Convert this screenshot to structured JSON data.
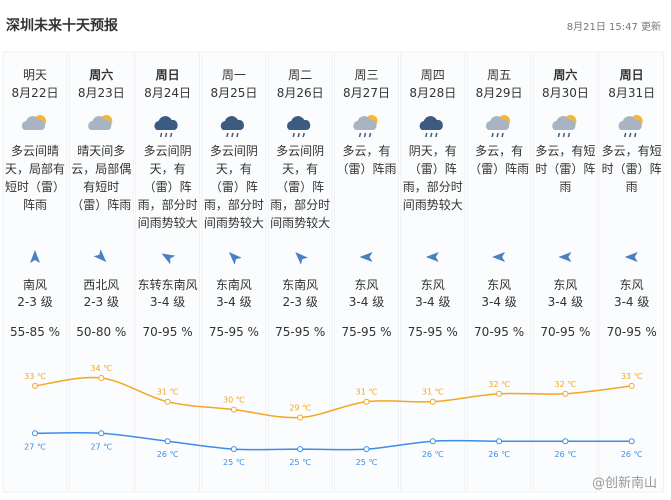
{
  "header": {
    "title": "深圳未来十天预报",
    "updated": "8月21日 15:47 更新"
  },
  "days": [
    {
      "day": "明天",
      "date": "8月22日",
      "weather": "多云间晴天，局部有短时（雷）阵雨",
      "wind": "南风",
      "level": "2-3 级",
      "humidity": "55-85 %"
    },
    {
      "day": "周六",
      "date": "8月23日",
      "weather": "晴天间多云，局部偶有短时（雷）阵雨",
      "wind": "西北风",
      "level": "2-3 级",
      "humidity": "50-80 %"
    },
    {
      "day": "周日",
      "date": "8月24日",
      "weather": "多云间阴天，有（雷）阵雨，部分时间雨势较大",
      "wind": "东转东南风",
      "level": "3-4 级",
      "humidity": "70-95 %"
    },
    {
      "day": "周一",
      "date": "8月25日",
      "weather": "多云间阴天，有（雷）阵雨，部分时间雨势较大",
      "wind": "东南风",
      "level": "3-4 级",
      "humidity": "75-95 %"
    },
    {
      "day": "周二",
      "date": "8月26日",
      "weather": "多云间阴天，有（雷）阵雨，部分时间雨势较大",
      "wind": "东南风",
      "level": "2-3 级",
      "humidity": "75-95 %"
    },
    {
      "day": "周三",
      "date": "8月27日",
      "weather": "多云，有（雷）阵雨",
      "wind": "东风",
      "level": "3-4 级",
      "humidity": "75-95 %"
    },
    {
      "day": "周四",
      "date": "8月28日",
      "weather": "阴天，有（雷）阵雨，部分时间雨势较大",
      "wind": "东风",
      "level": "3-4 级",
      "humidity": "75-95 %"
    },
    {
      "day": "周五",
      "date": "8月29日",
      "weather": "多云，有（雷）阵雨",
      "wind": "东风",
      "level": "3-4 级",
      "humidity": "70-95 %"
    },
    {
      "day": "周六",
      "date": "8月30日",
      "weather": "多云，有短时（雷）阵雨",
      "wind": "东风",
      "level": "3-4 级",
      "humidity": "70-95 %"
    },
    {
      "day": "周日",
      "date": "8月31日",
      "weather": "多云，有短时（雷）阵雨",
      "wind": "东风",
      "level": "3-4 级",
      "humidity": "70-95 %"
    }
  ],
  "temperature": {
    "high": {
      "color": "#f5a623",
      "values": [
        33,
        34,
        31,
        30,
        29,
        31,
        31,
        32,
        32,
        33
      ],
      "value_labels": [
        "33 ℃",
        "34 ℃",
        "31 ℃",
        "30 ℃",
        "29 ℃",
        "31 ℃",
        "31 ℃",
        "32 ℃",
        "32 ℃",
        "33 ℃"
      ]
    },
    "low": {
      "color": "#3a8ee6",
      "values": [
        27,
        27,
        26,
        25,
        25,
        25,
        26,
        26,
        26,
        26
      ],
      "value_labels": [
        "27 ℃",
        "27 ℃",
        "26 ℃",
        "25 ℃",
        "25 ℃",
        "25 ℃",
        "26 ℃",
        "26 ℃",
        "26 ℃",
        "26 ℃"
      ]
    }
  },
  "watermark": "@创新南山"
}
